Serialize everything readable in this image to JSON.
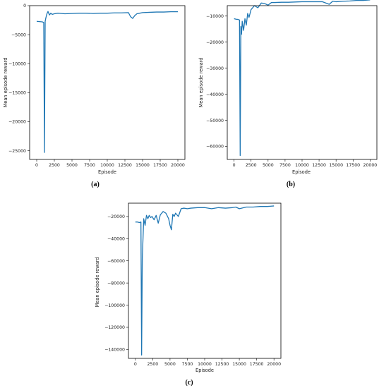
{
  "colors": {
    "series": "#1f77b4"
  },
  "chart_data": [
    {
      "type": "line",
      "panel_label": "(a)",
      "xlabel": "Episode",
      "ylabel": "Mean episode reward",
      "xlim": [
        -1000,
        21000
      ],
      "ylim": [
        -26500,
        0
      ],
      "xticks": [
        0,
        2500,
        5000,
        7500,
        10000,
        12500,
        15000,
        17500,
        20000
      ],
      "xtick_labels": [
        "0",
        "2500",
        "5000",
        "7500",
        "10000",
        "12500",
        "15000",
        "17500",
        "20000"
      ],
      "yticks": [
        0,
        -5000,
        -10000,
        -15000,
        -20000,
        -25000
      ],
      "ytick_labels": [
        "0",
        "−5000",
        "−10000",
        "−15000",
        "−20000",
        "−25000"
      ],
      "grid": false,
      "series": [
        {
          "x": [
            0,
            400,
            800,
            1000,
            1100,
            1200,
            1300,
            1450,
            1600,
            1800,
            2000,
            2200,
            2500,
            3000,
            3500,
            4000,
            5000,
            6000,
            7000,
            8000,
            9000,
            10000,
            11000,
            12000,
            13000,
            13300,
            13600,
            13900,
            14200,
            14600,
            15000,
            16000,
            17000,
            18000,
            19000,
            20000
          ],
          "y": [
            -2700,
            -2750,
            -2800,
            -2900,
            -25300,
            -2700,
            -2100,
            -1400,
            -1000,
            -1600,
            -1300,
            -1500,
            -1400,
            -1300,
            -1350,
            -1400,
            -1350,
            -1300,
            -1300,
            -1350,
            -1300,
            -1300,
            -1250,
            -1250,
            -1200,
            -1900,
            -2200,
            -1700,
            -1400,
            -1300,
            -1200,
            -1150,
            -1100,
            -1100,
            -1050,
            -1050
          ]
        }
      ]
    },
    {
      "type": "line",
      "panel_label": "(b)",
      "xlabel": "Episode",
      "ylabel": "Mean episode reward",
      "xlim": [
        -1000,
        21000
      ],
      "ylim": [
        -65000,
        -6000
      ],
      "xticks": [
        0,
        2500,
        5000,
        7500,
        10000,
        12500,
        15000,
        17500,
        20000
      ],
      "xtick_labels": [
        "0",
        "2500",
        "5000",
        "7500",
        "10000",
        "12500",
        "15000",
        "17500",
        "20000"
      ],
      "yticks": [
        -10000,
        -20000,
        -30000,
        -40000,
        -50000,
        -60000
      ],
      "ytick_labels": [
        "−10000",
        "−20000",
        "−30000",
        "−40000",
        "−50000",
        "−60000"
      ],
      "grid": false,
      "series": [
        {
          "x": [
            0,
            300,
            600,
            800,
            900,
            1000,
            1100,
            1200,
            1400,
            1600,
            1800,
            2000,
            2200,
            2500,
            3000,
            3500,
            4000,
            4500,
            5000,
            5500,
            6000,
            7000,
            8000,
            9000,
            10000,
            11000,
            12000,
            13000,
            14000,
            14500,
            15000,
            16000,
            17000,
            18000,
            19000,
            20000
          ],
          "y": [
            -11000,
            -11200,
            -11300,
            -11500,
            -63500,
            -14000,
            -17000,
            -12000,
            -15500,
            -11000,
            -13500,
            -9000,
            -10500,
            -7500,
            -6000,
            -6800,
            -5000,
            -5200,
            -5800,
            -4800,
            -4800,
            -4700,
            -4700,
            -4600,
            -4500,
            -4500,
            -4500,
            -4500,
            -5500,
            -4300,
            -4500,
            -4300,
            -4200,
            -4000,
            -4000,
            -3800
          ]
        }
      ]
    },
    {
      "type": "line",
      "panel_label": "(c)",
      "xlabel": "Episode",
      "ylabel": "Mean episode reward",
      "xlim": [
        -1000,
        21000
      ],
      "ylim": [
        -148000,
        -8000
      ],
      "xticks": [
        0,
        2500,
        5000,
        7500,
        10000,
        12500,
        15000,
        17500,
        20000
      ],
      "xtick_labels": [
        "0",
        "2500",
        "5000",
        "7500",
        "10000",
        "12500",
        "15000",
        "17500",
        "20000"
      ],
      "yticks": [
        -20000,
        -40000,
        -60000,
        -80000,
        -100000,
        -120000,
        -140000
      ],
      "ytick_labels": [
        "−20000",
        "−40000",
        "−60000",
        "−80000",
        "−100000",
        "−120000",
        "−140000"
      ],
      "grid": false,
      "series": [
        {
          "x": [
            0,
            300,
            600,
            800,
            900,
            1000,
            1100,
            1200,
            1400,
            1600,
            1800,
            2000,
            2200,
            2400,
            2700,
            3000,
            3300,
            3600,
            4000,
            4400,
            4800,
            5000,
            5200,
            5400,
            5600,
            5800,
            6200,
            6600,
            7000,
            7500,
            8000,
            9000,
            10000,
            11000,
            12000,
            13000,
            14000,
            14500,
            15000,
            16000,
            17000,
            18000,
            19000,
            20000
          ],
          "y": [
            -25000,
            -25000,
            -25500,
            -25000,
            -145000,
            -57000,
            -40000,
            -22000,
            -28000,
            -19000,
            -22000,
            -19000,
            -21000,
            -20000,
            -23000,
            -19000,
            -26000,
            -18500,
            -15500,
            -17000,
            -22000,
            -28000,
            -32000,
            -18000,
            -20000,
            -17000,
            -20000,
            -13000,
            -12500,
            -13000,
            -12500,
            -12000,
            -12000,
            -13000,
            -12000,
            -12500,
            -12000,
            -11500,
            -13000,
            -11500,
            -11500,
            -11000,
            -11000,
            -10500
          ]
        }
      ]
    }
  ]
}
